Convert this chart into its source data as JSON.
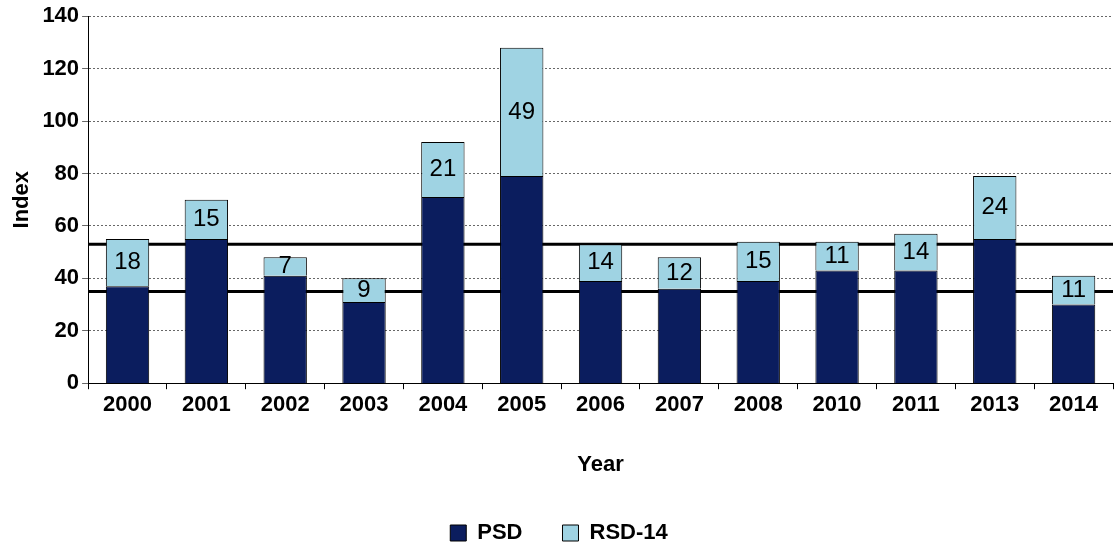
{
  "chart_data": {
    "type": "bar",
    "xlabel": "Year",
    "ylabel": "Index",
    "stacked": true,
    "categories": [
      "2000",
      "2001",
      "2002",
      "2003",
      "2004",
      "2005",
      "2006",
      "2007",
      "2008",
      "2010",
      "2011",
      "2013",
      "2014"
    ],
    "series": [
      {
        "name": "PSD",
        "color": "#0b1d5e",
        "values": [
          37,
          55,
          41,
          31,
          71,
          79,
          39,
          36,
          39,
          43,
          43,
          55,
          30
        ]
      },
      {
        "name": "RSD-14",
        "color": "#9fd3e3",
        "values": [
          18,
          15,
          7,
          9,
          21,
          49,
          14,
          12,
          15,
          11,
          14,
          24,
          11
        ],
        "value_labels": [
          "18",
          "15",
          "7",
          "9",
          "21",
          "49",
          "14",
          "12",
          "15",
          "11",
          "14",
          "24",
          "11"
        ]
      }
    ],
    "ylim": [
      0,
      140
    ],
    "yticks": [
      0,
      20,
      40,
      60,
      80,
      100,
      120,
      140
    ],
    "grid": "y",
    "legend": "bottom",
    "ref_lines": [
      {
        "axis": "y",
        "value": 53,
        "color": "#000000"
      },
      {
        "axis": "y",
        "value": 35,
        "color": "#000000"
      }
    ]
  }
}
